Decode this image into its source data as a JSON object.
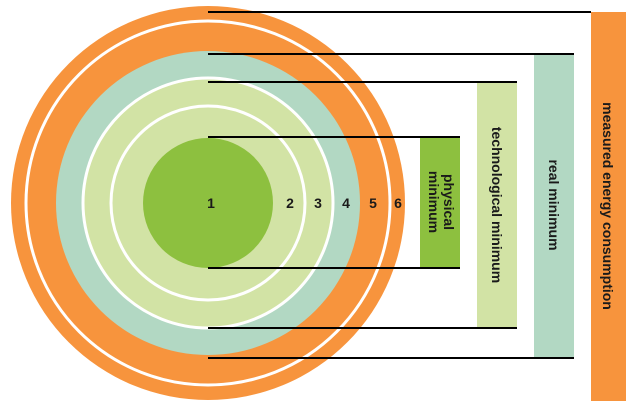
{
  "colors": {
    "orange": "#f7943d",
    "teal": "#b2d8c3",
    "light_green": "#d2e3a5",
    "green": "#8dc03f",
    "ring_stroke": "#ffffff",
    "line": "#000000"
  },
  "rings": [
    {
      "number": "1",
      "level": "physical"
    },
    {
      "number": "2",
      "level": "technological"
    },
    {
      "number": "3",
      "level": "technological"
    },
    {
      "number": "4",
      "level": "real"
    },
    {
      "number": "5",
      "level": "measured"
    },
    {
      "number": "6",
      "level": "measured"
    }
  ],
  "bars": {
    "physical_minimum": {
      "line1": "physical",
      "line2": "minimum"
    },
    "technological_minimum": {
      "label": "technological minimum"
    },
    "real_minimum": {
      "label": "real minimum"
    },
    "measured_energy_consumption": {
      "label": "measured energy consumption"
    }
  }
}
